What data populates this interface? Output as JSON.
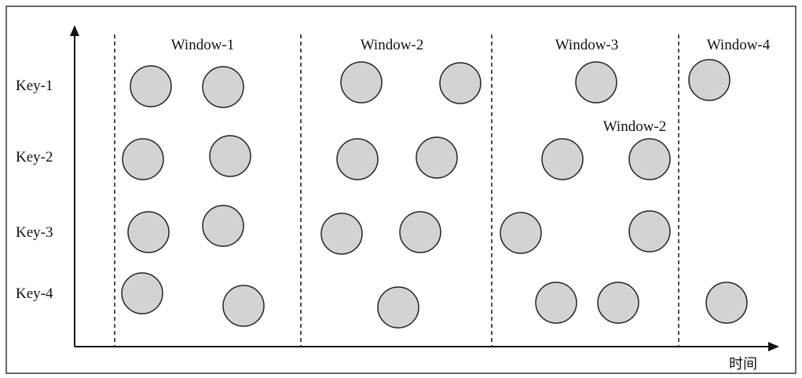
{
  "diagram": {
    "window_labels": [
      "Window-1",
      "Window-2",
      "Window-3",
      "Window-4"
    ],
    "extra_window_label": "Window-2",
    "key_labels": [
      "Key-1",
      "Key-2",
      "Key-3",
      "Key-4"
    ],
    "x_axis_label": "时间",
    "colors": {
      "event_fill": "#d3d3d3",
      "event_stroke": "#222222",
      "line": "#111111"
    }
  }
}
